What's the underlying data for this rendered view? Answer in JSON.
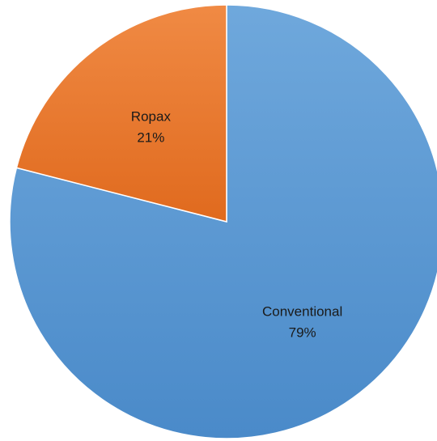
{
  "chart_data": {
    "type": "pie",
    "title": "",
    "categories": [
      "Conventional",
      "Ropax"
    ],
    "values": [
      79,
      21
    ],
    "value_labels": [
      "79%",
      "21%"
    ],
    "start_angle_deg": 0,
    "direction": "clockwise",
    "legend": "none",
    "colors": [
      "#5B9BD5",
      "#ED7D31"
    ],
    "gradient_light": [
      "#6FA8DC",
      "#F08A44"
    ],
    "gradient_dark": [
      "#4A8AC9",
      "#E06A1E"
    ]
  }
}
